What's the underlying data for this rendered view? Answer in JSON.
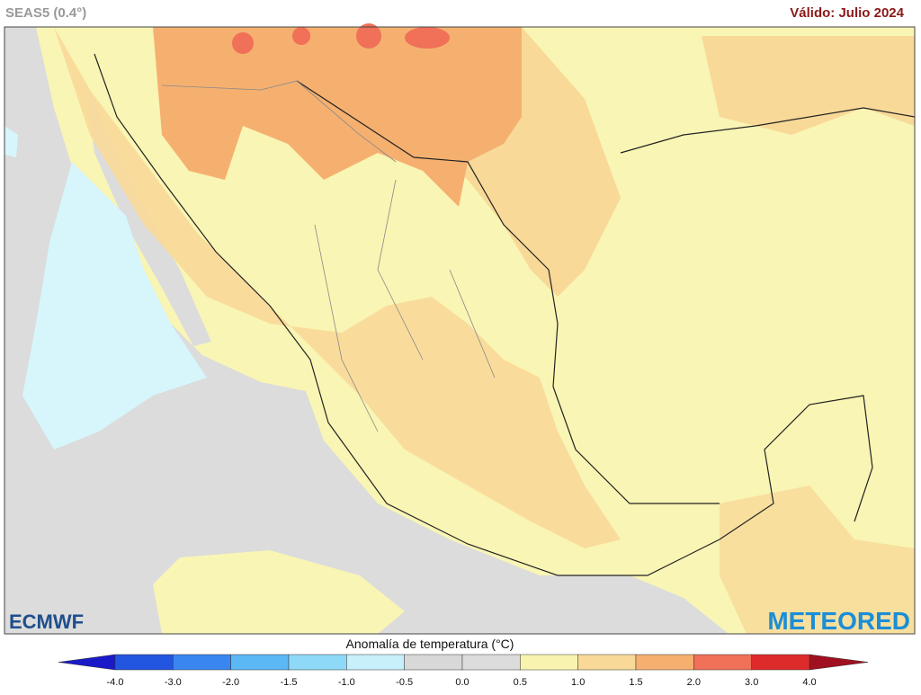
{
  "header": {
    "title": "SEAS5 (0.4°)",
    "valid": "Válido: Julio 2024"
  },
  "logos": {
    "left": "ECMWF",
    "right": "METEORED"
  },
  "legend": {
    "title": "Anomalía de temperatura (°C)",
    "ticks": [
      "-4.0",
      "-3.0",
      "-2.0",
      "-1.5",
      "-1.0",
      "-0.5",
      "0.0",
      "0.5",
      "1.0",
      "1.5",
      "2.0",
      "3.0",
      "4.0"
    ],
    "low_color": "#1a1ac8",
    "colors": [
      "#2255e0",
      "#3a86f0",
      "#5bb8f5",
      "#8fd9f8",
      "#c8f0fb",
      "#d8d8d8",
      "#dcdcdc",
      "#f8f4b0",
      "#f8d998",
      "#f5b070",
      "#f07058",
      "#dd2a2a"
    ],
    "high_color": "#a01020"
  }
}
